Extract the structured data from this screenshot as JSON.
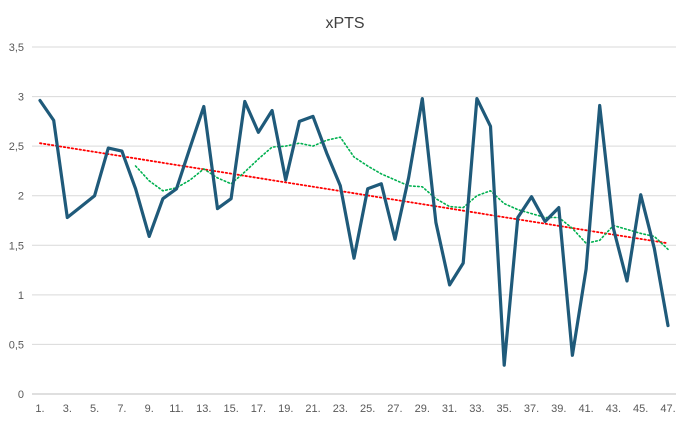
{
  "chart_data": {
    "type": "line",
    "title": "xPTS",
    "xlabel": "",
    "ylabel": "",
    "ylim": [
      0,
      3.5
    ],
    "yticks": [
      0,
      0.5,
      1,
      1.5,
      2,
      2.5,
      3,
      3.5
    ],
    "ytick_labels": [
      "0",
      "0,5",
      "1",
      "1,5",
      "2",
      "2,5",
      "3",
      "3,5"
    ],
    "x": [
      1,
      2,
      3,
      4,
      5,
      6,
      7,
      8,
      9,
      10,
      11,
      12,
      13,
      14,
      15,
      16,
      17,
      18,
      19,
      20,
      21,
      22,
      23,
      24,
      25,
      26,
      27,
      28,
      29,
      30,
      31,
      32,
      33,
      34,
      35,
      36,
      37,
      38,
      39,
      40,
      41,
      42,
      43,
      44,
      45,
      46,
      47
    ],
    "xtick_values": [
      1,
      3,
      5,
      7,
      9,
      11,
      13,
      15,
      17,
      19,
      21,
      23,
      25,
      27,
      29,
      31,
      33,
      35,
      37,
      39,
      41,
      43,
      45,
      47
    ],
    "xtick_labels": [
      "1.",
      "3.",
      "5.",
      "7.",
      "9.",
      "11.",
      "13.",
      "15.",
      "17.",
      "19.",
      "21.",
      "23.",
      "25.",
      "27.",
      "29.",
      "31.",
      "33.",
      "35.",
      "37.",
      "39.",
      "41.",
      "43.",
      "45.",
      "47."
    ],
    "gridlines": "horizontal",
    "series": [
      {
        "kind": "data",
        "style": "solid",
        "color": "#1f5a7a",
        "values": [
          2.96,
          2.76,
          1.78,
          1.89,
          2.0,
          2.48,
          2.45,
          2.07,
          1.59,
          1.97,
          2.07,
          2.49,
          2.9,
          1.87,
          1.97,
          2.95,
          2.64,
          2.86,
          2.16,
          2.75,
          2.8,
          2.43,
          2.1,
          1.37,
          2.07,
          2.12,
          1.56,
          2.18,
          2.98,
          1.73,
          1.1,
          1.32,
          2.98,
          2.7,
          0.29,
          1.78,
          1.99,
          1.74,
          1.88,
          0.39,
          1.26,
          2.91,
          1.67,
          1.14,
          2.01,
          1.47,
          0.69
        ]
      },
      {
        "kind": "moving-average",
        "style": "dotted",
        "color": "#00b050",
        "x": [
          8,
          9,
          10,
          11,
          12,
          13,
          14,
          15,
          16,
          17,
          18,
          19,
          20,
          21,
          22,
          23,
          24,
          25,
          26,
          27,
          28,
          29,
          30,
          31,
          32,
          33,
          34,
          35,
          36,
          37,
          38,
          39,
          40,
          41,
          42,
          43,
          44,
          45,
          46,
          47
        ],
        "values": [
          2.3,
          2.15,
          2.05,
          2.08,
          2.16,
          2.27,
          2.18,
          2.12,
          2.24,
          2.37,
          2.49,
          2.5,
          2.53,
          2.5,
          2.56,
          2.59,
          2.39,
          2.3,
          2.22,
          2.16,
          2.1,
          2.09,
          1.97,
          1.89,
          1.88,
          2.0,
          2.05,
          1.92,
          1.86,
          1.82,
          1.78,
          1.78,
          1.67,
          1.52,
          1.55,
          1.7,
          1.66,
          1.62,
          1.59,
          1.46
        ]
      },
      {
        "kind": "linear-trend",
        "style": "dotted",
        "color": "#ff0000",
        "x": [
          1,
          47
        ],
        "values": [
          2.53,
          1.52
        ]
      }
    ]
  }
}
